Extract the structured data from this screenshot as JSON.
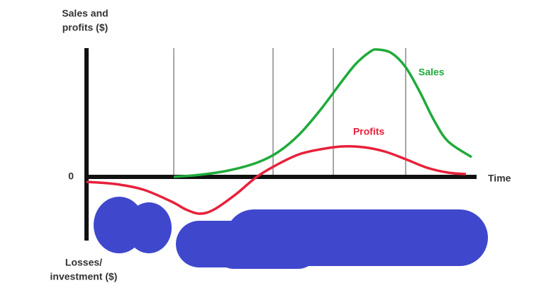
{
  "chart_data": {
    "type": "line",
    "y_label_top": [
      "Sales and",
      "profits ($)"
    ],
    "y_label_bottom": [
      "Losses/",
      "investment ($)"
    ],
    "x_label": "Time",
    "xlim": [
      0,
      55
    ],
    "ylim": [
      -9,
      18.2
    ],
    "yticks": [
      0
    ],
    "series": [
      {
        "name": "Sales",
        "color": "#1faa3a",
        "x": [
          12.3,
          16,
          20,
          24,
          27,
          30,
          33,
          36,
          38,
          40,
          41,
          43,
          45,
          47,
          49,
          51,
          54.3
        ],
        "values": [
          0,
          0.3,
          0.9,
          2,
          3.5,
          6,
          9.5,
          13.5,
          16,
          17.7,
          18,
          17.5,
          15.5,
          12,
          8,
          5,
          2.8
        ]
      },
      {
        "name": "Profits",
        "color": "#e8203a",
        "x": [
          0,
          4,
          8,
          12,
          14,
          16,
          18,
          21,
          24,
          27,
          30,
          33,
          36,
          39,
          42,
          45,
          48,
          51,
          53.5
        ],
        "values": [
          -0.7,
          -1,
          -1.8,
          -3.5,
          -4.6,
          -5.2,
          -4.6,
          -2.5,
          0,
          1.8,
          3.2,
          3.9,
          4.3,
          4.2,
          3.6,
          2.5,
          1.3,
          0.6,
          0.4
        ]
      }
    ]
  }
}
